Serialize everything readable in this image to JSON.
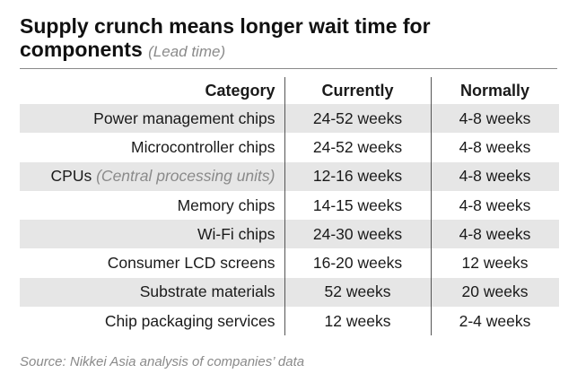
{
  "chart_data": {
    "type": "table",
    "title": "Supply crunch means longer wait time for components",
    "subtitle": "(Lead time)",
    "columns": [
      "Category",
      "Currently",
      "Normally"
    ],
    "rows": [
      {
        "category": "Power management chips",
        "note": "",
        "currently": "24-52 weeks",
        "normally": "4-8 weeks"
      },
      {
        "category": "Microcontroller chips",
        "note": "",
        "currently": "24-52 weeks",
        "normally": "4-8 weeks"
      },
      {
        "category": "CPUs",
        "note": "(Central processing units)",
        "currently": "12-16 weeks",
        "normally": "4-8 weeks"
      },
      {
        "category": "Memory chips",
        "note": "",
        "currently": "14-15 weeks",
        "normally": "4-8 weeks"
      },
      {
        "category": "Wi-Fi chips",
        "note": "",
        "currently": "24-30 weeks",
        "normally": "4-8 weeks"
      },
      {
        "category": "Consumer LCD screens",
        "note": "",
        "currently": "16-20 weeks",
        "normally": "12 weeks"
      },
      {
        "category": "Substrate materials",
        "note": "",
        "currently": "52 weeks",
        "normally": "20 weeks"
      },
      {
        "category": "Chip packaging services",
        "note": "",
        "currently": "12 weeks",
        "normally": "2-4 weeks"
      }
    ],
    "source": "Source: Nikkei Asia analysis of companies’ data",
    "row_stripe_color": "#e6e6e6"
  }
}
